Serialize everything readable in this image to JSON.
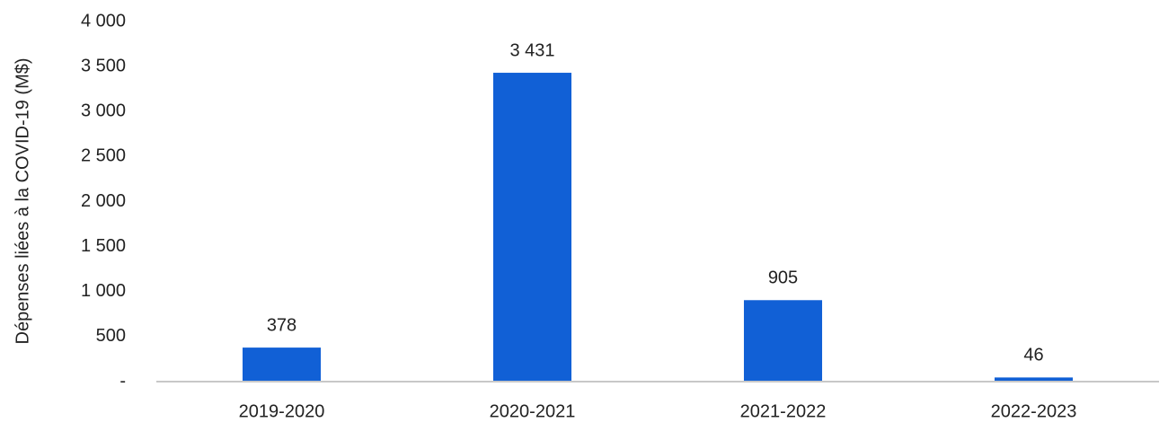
{
  "chart_data": {
    "type": "bar",
    "y_label": "Dépenses liées à la COVID-19 (M$)",
    "categories": [
      "2019-2020",
      "2020-2021",
      "2021-2022",
      "2022-2023"
    ],
    "values": [
      378,
      3431,
      905,
      46
    ],
    "value_labels": [
      "378",
      "3 431",
      "905",
      "46"
    ],
    "color": "#1160d6",
    "ylim": [
      0,
      4000
    ],
    "yticks": [
      {
        "value": 0,
        "label": "-"
      },
      500,
      {
        "value": 1000,
        "label": "1 000"
      },
      {
        "value": 1500,
        "label": "1 500"
      },
      {
        "value": 2000,
        "label": "2 000"
      },
      {
        "value": 2500,
        "label": "2 500"
      },
      {
        "value": 3000,
        "label": "3 000"
      },
      {
        "value": 3500,
        "label": "3 500"
      },
      {
        "value": 4000,
        "label": "4 000"
      }
    ],
    "grid": false
  }
}
